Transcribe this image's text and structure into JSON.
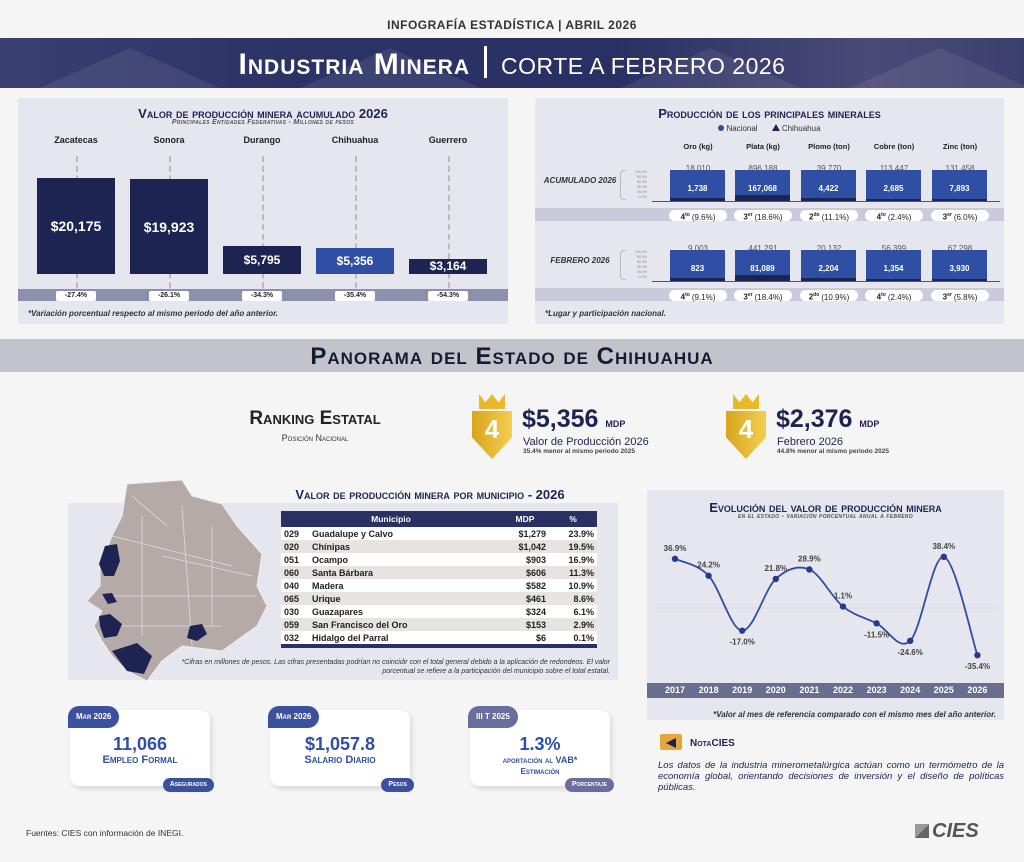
{
  "header": {
    "top_label": "INFOGRAFÍA ESTADÍSTICA | ABRIL 2026",
    "title": "Industria Minera",
    "subtitle": "CORTE A FEBRERO 2026"
  },
  "chart_data": [
    {
      "type": "bar",
      "title": "Valor de producción minera acumulado 2026",
      "subtitle": "Principales Entidades Federativas - Millones de pesos",
      "categories": [
        "Zacatecas",
        "Sonora",
        "Durango",
        "Chihuahua",
        "Guerrero"
      ],
      "values": [
        20175,
        19923,
        5795,
        5356,
        3164
      ],
      "value_labels": [
        "$20,175",
        "$19,923",
        "$5,795",
        "$5,356",
        "$3,164"
      ],
      "variation_labels": [
        "-27.4%",
        "-26.1%",
        "-34.3%",
        "-35.4%",
        "-54.3%"
      ],
      "highlight": "Chihuahua",
      "colors": {
        "default": "#1d2452",
        "highlight": "#2e4fa3"
      },
      "footnote": "*Variación porcentual respecto al mismo periodo del año anterior."
    },
    {
      "type": "bar",
      "title": "Producción de los principales minerales",
      "legend": [
        "Nacional",
        "Chihuahua"
      ],
      "categories": [
        "Oro (kg)",
        "Plata (kg)",
        "Plomo (ton)",
        "Cobre (ton)",
        "Zinc (ton)"
      ],
      "axis_ticks": [
        "100.0%",
        "80.0%",
        "60.0%",
        "40.0%",
        "20.0%",
        "0.0%"
      ],
      "rows": [
        {
          "label": "ACUMULADO 2026",
          "nacional": [
            18010,
            896188,
            39770,
            113447,
            131458
          ],
          "nacional_labels": [
            "18,010",
            "896,188",
            "39,770",
            "113,447",
            "131,458"
          ],
          "chihuahua": [
            1738,
            167068,
            4422,
            2685,
            7893
          ],
          "chihuahua_labels": [
            "1,738",
            "167,068",
            "4,422",
            "2,685",
            "7,893"
          ],
          "rank_ord": [
            "4to",
            "3er",
            "2do",
            "4to",
            "3er"
          ],
          "rank_num": [
            "4",
            "3",
            "2",
            "4",
            "3"
          ],
          "rank_sup": [
            "to",
            "er",
            "do",
            "to",
            "er"
          ],
          "share": [
            "(9.6%)",
            "(18.6%)",
            "(11.1%)",
            "(2.4%)",
            "(6.0%)"
          ]
        },
        {
          "label": "FEBRERO 2026",
          "nacional": [
            9003,
            441291,
            20132,
            56399,
            67298
          ],
          "nacional_labels": [
            "9,003",
            "441,291",
            "20,132",
            "56,399",
            "67,298"
          ],
          "chihuahua": [
            823,
            81089,
            2204,
            1354,
            3930
          ],
          "chihuahua_labels": [
            "823",
            "81,089",
            "2,204",
            "1,354",
            "3,930"
          ],
          "rank_num": [
            "4",
            "3",
            "2",
            "4",
            "3"
          ],
          "rank_sup": [
            "to",
            "er",
            "do",
            "to",
            "er"
          ],
          "share": [
            "(9.1%)",
            "(18.4%)",
            "(10.9%)",
            "(2.4%)",
            "(5.8%)"
          ]
        }
      ],
      "footnote": "*Lugar y participación nacional."
    },
    {
      "type": "line",
      "title": "Evolución del valor de producción minera",
      "subtitle": "en el estado - variación porcentual anual a febrero",
      "x": [
        "2017",
        "2018",
        "2019",
        "2020",
        "2021",
        "2022",
        "2023",
        "2024",
        "2025",
        "2026"
      ],
      "y": [
        36.9,
        24.2,
        -17.0,
        21.8,
        28.9,
        1.1,
        -11.5,
        -24.6,
        38.4,
        -35.4
      ],
      "labels": [
        "36.9%",
        "24.2%",
        "-17.0%",
        "21.8%",
        "28.9%",
        "1.1%",
        "-11.5%",
        "-24.6%",
        "38.4%",
        "-35.4%"
      ],
      "ylim": [
        -45,
        45
      ],
      "color": "#2e4fa3",
      "footnote": "*Valor al mes de referencia comparado con el mismo mes del año anterior."
    }
  ],
  "panorama": {
    "title": "Panorama del Estado de Chihuahua",
    "ranking_title": "Ranking Estatal",
    "ranking_sub": "Posición Nacional",
    "kpis": [
      {
        "rank": "4",
        "value": "$5,356",
        "unit": "MDP",
        "label": "Valor de Producción 2026",
        "note": "35.4% menor al mismo periodo 2025"
      },
      {
        "rank": "4",
        "value": "$2,376",
        "unit": "MDP",
        "label": "Febrero 2026",
        "note": "44.8% menor al mismo periodo 2025"
      }
    ]
  },
  "municipios": {
    "title": "Valor de producción minera por municipio - 2026",
    "headers": [
      "Municipio",
      "MDP",
      "%"
    ],
    "rows": [
      {
        "code": "029",
        "name": "Guadalupe y Calvo",
        "mdp": "$1,279",
        "pct": "23.9%"
      },
      {
        "code": "020",
        "name": "Chínipas",
        "mdp": "$1,042",
        "pct": "19.5%"
      },
      {
        "code": "051",
        "name": "Ocampo",
        "mdp": "$903",
        "pct": "16.9%"
      },
      {
        "code": "060",
        "name": "Santa Bárbara",
        "mdp": "$606",
        "pct": "11.3%"
      },
      {
        "code": "040",
        "name": "Madera",
        "mdp": "$582",
        "pct": "10.9%"
      },
      {
        "code": "065",
        "name": "Urique",
        "mdp": "$461",
        "pct": "8.6%"
      },
      {
        "code": "030",
        "name": "Guazapares",
        "mdp": "$324",
        "pct": "6.1%"
      },
      {
        "code": "059",
        "name": "San Francisco del Oro",
        "mdp": "$153",
        "pct": "2.9%"
      },
      {
        "code": "032",
        "name": "Hidalgo del Parral",
        "mdp": "$6",
        "pct": "0.1%"
      }
    ],
    "footnote": "*Cifras en millones de pesos. Las cifras presentadas podrían no coincidir con el total general debido a la aplicación de redondeos. El valor porcentual se refiere a la participación del municipio sobre el total estatal."
  },
  "cards": [
    {
      "tag": "Mar 2026",
      "value": "11,066",
      "label": "Empleo Formal",
      "label2": "",
      "foot": "Asegurados"
    },
    {
      "tag": "Mar 2026",
      "value": "$1,057.8",
      "label": "Salario Diario",
      "label2": "",
      "foot": "Pesos"
    },
    {
      "tag": "III T 2025",
      "value": "1.3%",
      "label": "aportación al VAB*",
      "label2": "Estimación",
      "foot": "Porcentaje"
    }
  ],
  "nota": {
    "title": "NotaCIES",
    "text": "Los datos de la industria minerometalúrgica actúan como un termómetro de la economía global, orientando decisiones de inversión y el diseño de políticas públicas."
  },
  "footer": {
    "sources": "Fuentes: CIES con información de INEGI.",
    "logo": "CIES"
  }
}
